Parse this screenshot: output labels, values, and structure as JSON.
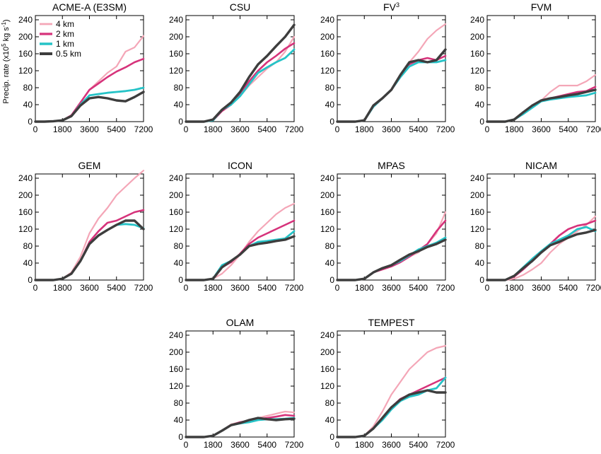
{
  "chart_data": {
    "type": "line",
    "ylabel": "Precip. rate",
    "ylabel_unit": "(x10",
    "ylabel_exp": "5",
    "ylabel_unit2": " kg s",
    "ylabel_exp2": "-1",
    "ylabel_close": ")",
    "ylim": [
      0,
      250
    ],
    "xlim": [
      0,
      7200
    ],
    "x_ticks": [
      0,
      1800,
      3600,
      5400,
      7200
    ],
    "y_ticks": [
      0,
      40,
      80,
      120,
      160,
      200,
      240
    ],
    "x": [
      0,
      600,
      1200,
      1800,
      2400,
      3000,
      3600,
      4200,
      4800,
      5400,
      6000,
      6600,
      7200
    ],
    "legend_position": "top-left",
    "series_styles": [
      {
        "name": "4 km",
        "color": "#f4a6b7",
        "width": 2.2
      },
      {
        "name": "2 km",
        "color": "#d6337b",
        "width": 2.6
      },
      {
        "name": "1 km",
        "color": "#26c3c7",
        "width": 2.8
      },
      {
        "name": "0.5 km",
        "color": "#3d3d3d",
        "width": 3.4
      }
    ],
    "panels": [
      {
        "title": "ACME-A (E3SM)",
        "title_sup": "",
        "show_legend": true,
        "show_ylabel": true,
        "series": [
          {
            "name": "4 km",
            "values": [
              0,
              0,
              1,
              3,
              15,
              45,
              75,
              95,
              115,
              130,
              165,
              175,
              202
            ]
          },
          {
            "name": "2 km",
            "values": [
              0,
              0,
              1,
              3,
              15,
              45,
              75,
              90,
              105,
              118,
              128,
              140,
              148
            ]
          },
          {
            "name": "1 km",
            "values": [
              0,
              0,
              1,
              3,
              13,
              40,
              62,
              65,
              68,
              70,
              72,
              75,
              80
            ]
          },
          {
            "name": "0.5 km",
            "values": [
              0,
              0,
              1,
              3,
              13,
              38,
              55,
              58,
              55,
              50,
              48,
              58,
              70
            ]
          }
        ]
      },
      {
        "title": "CSU",
        "title_sup": "",
        "show_legend": false,
        "show_ylabel": false,
        "series": [
          {
            "name": "4 km",
            "values": [
              0,
              0,
              0,
              3,
              25,
              40,
              60,
              85,
              105,
              125,
              140,
              165,
              200
            ]
          },
          {
            "name": "2 km",
            "values": [
              0,
              0,
              0,
              3,
              25,
              40,
              65,
              95,
              120,
              140,
              155,
              172,
              185
            ]
          },
          {
            "name": "1 km",
            "values": [
              0,
              0,
              0,
              3,
              28,
              40,
              60,
              88,
              115,
              128,
              140,
              150,
              170
            ]
          },
          {
            "name": "0.5 km",
            "values": [
              0,
              0,
              0,
              5,
              28,
              45,
              70,
              105,
              135,
              155,
              178,
              200,
              228
            ]
          }
        ]
      },
      {
        "title": "FV",
        "title_sup": "3",
        "show_legend": false,
        "show_ylabel": false,
        "series": [
          {
            "name": "4 km",
            "values": [
              0,
              0,
              0,
              3,
              35,
              55,
              75,
              105,
              140,
              165,
              195,
              215,
              230
            ]
          },
          {
            "name": "2 km",
            "values": [
              0,
              0,
              0,
              3,
              35,
              55,
              75,
              105,
              135,
              145,
              150,
              145,
              155
            ]
          },
          {
            "name": "1 km",
            "values": [
              0,
              0,
              0,
              3,
              35,
              55,
              75,
              105,
              130,
              140,
              140,
              140,
              145
            ]
          },
          {
            "name": "0.5 km",
            "values": [
              0,
              0,
              0,
              3,
              38,
              55,
              75,
              110,
              140,
              145,
              140,
              145,
              170
            ]
          }
        ]
      },
      {
        "title": "FVM",
        "title_sup": "",
        "show_legend": false,
        "show_ylabel": false,
        "series": [
          {
            "name": "4 km",
            "values": [
              0,
              0,
              0,
              5,
              18,
              35,
              50,
              70,
              85,
              85,
              85,
              95,
              110
            ]
          },
          {
            "name": "2 km",
            "values": [
              0,
              0,
              0,
              5,
              18,
              35,
              50,
              55,
              60,
              65,
              70,
              72,
              82
            ]
          },
          {
            "name": "1 km",
            "values": [
              0,
              0,
              0,
              5,
              18,
              33,
              48,
              52,
              55,
              58,
              60,
              62,
              68
            ]
          },
          {
            "name": "0.5 km",
            "values": [
              0,
              0,
              0,
              5,
              22,
              38,
              50,
              55,
              58,
              62,
              65,
              70,
              75
            ]
          }
        ]
      },
      {
        "title": "GEM",
        "title_sup": "",
        "show_legend": false,
        "show_ylabel": false,
        "series": [
          {
            "name": "4 km",
            "values": [
              0,
              0,
              0,
              3,
              18,
              55,
              110,
              145,
              170,
              200,
              220,
              240,
              258
            ]
          },
          {
            "name": "2 km",
            "values": [
              0,
              0,
              0,
              3,
              15,
              45,
              90,
              115,
              135,
              140,
              150,
              160,
              165
            ]
          },
          {
            "name": "1 km",
            "values": [
              0,
              0,
              0,
              3,
              15,
              45,
              85,
              105,
              118,
              130,
              132,
              130,
              122
            ]
          },
          {
            "name": "0.5 km",
            "values": [
              0,
              0,
              0,
              3,
              15,
              45,
              85,
              105,
              118,
              130,
              140,
              140,
              120
            ]
          }
        ]
      },
      {
        "title": "ICON",
        "title_sup": "",
        "show_legend": false,
        "show_ylabel": false,
        "series": [
          {
            "name": "4 km",
            "values": [
              0,
              0,
              0,
              3,
              15,
              35,
              60,
              90,
              115,
              135,
              155,
              170,
              180
            ]
          },
          {
            "name": "2 km",
            "values": [
              0,
              0,
              0,
              3,
              30,
              42,
              62,
              85,
              100,
              110,
              120,
              130,
              140
            ]
          },
          {
            "name": "1 km",
            "values": [
              0,
              0,
              0,
              3,
              35,
              45,
              60,
              80,
              90,
              92,
              95,
              98,
              115
            ]
          },
          {
            "name": "0.5 km",
            "values": [
              0,
              0,
              0,
              3,
              30,
              45,
              60,
              80,
              85,
              88,
              92,
              95,
              103
            ]
          }
        ]
      },
      {
        "title": "MPAS",
        "title_sup": "",
        "show_legend": false,
        "show_ylabel": false,
        "series": [
          {
            "name": "4 km",
            "values": [
              0,
              0,
              0,
              3,
              18,
              25,
              32,
              42,
              55,
              65,
              85,
              110,
              160
            ]
          },
          {
            "name": "2 km",
            "values": [
              0,
              0,
              0,
              3,
              18,
              25,
              32,
              42,
              55,
              70,
              85,
              115,
              140
            ]
          },
          {
            "name": "1 km",
            "values": [
              0,
              0,
              0,
              3,
              18,
              28,
              35,
              45,
              58,
              72,
              80,
              88,
              100
            ]
          },
          {
            "name": "0.5 km",
            "values": [
              0,
              0,
              0,
              3,
              18,
              28,
              35,
              48,
              60,
              68,
              78,
              85,
              95
            ]
          }
        ]
      },
      {
        "title": "NICAM",
        "title_sup": "",
        "show_legend": false,
        "show_ylabel": false,
        "series": [
          {
            "name": "4 km",
            "values": [
              0,
              0,
              0,
              3,
              12,
              25,
              40,
              65,
              85,
              100,
              115,
              130,
              150
            ]
          },
          {
            "name": "2 km",
            "values": [
              0,
              0,
              0,
              8,
              25,
              45,
              65,
              85,
              105,
              120,
              128,
              132,
              140
            ]
          },
          {
            "name": "1 km",
            "values": [
              0,
              0,
              0,
              10,
              30,
              50,
              68,
              85,
              95,
              105,
              120,
              125,
              115
            ]
          },
          {
            "name": "0.5 km",
            "values": [
              0,
              0,
              0,
              10,
              28,
              45,
              65,
              82,
              90,
              100,
              108,
              112,
              118
            ]
          }
        ]
      },
      {
        "title": "OLAM",
        "title_sup": "",
        "show_legend": false,
        "show_ylabel": false,
        "series": [
          {
            "name": "4 km",
            "values": [
              0,
              0,
              0,
              3,
              15,
              30,
              35,
              40,
              45,
              50,
              55,
              60,
              58
            ]
          },
          {
            "name": "2 km",
            "values": [
              0,
              0,
              0,
              3,
              15,
              28,
              35,
              38,
              42,
              45,
              48,
              52,
              50
            ]
          },
          {
            "name": "1 km",
            "values": [
              0,
              0,
              0,
              3,
              15,
              28,
              32,
              35,
              40,
              42,
              42,
              43,
              45
            ]
          },
          {
            "name": "0.5 km",
            "values": [
              0,
              0,
              0,
              3,
              15,
              28,
              33,
              40,
              45,
              42,
              40,
              42,
              43
            ]
          }
        ]
      },
      {
        "title": "TEMPEST",
        "title_sup": "",
        "show_legend": false,
        "show_ylabel": false,
        "series": [
          {
            "name": "4 km",
            "values": [
              0,
              0,
              0,
              3,
              25,
              60,
              100,
              130,
              160,
              180,
              200,
              210,
              215
            ]
          },
          {
            "name": "2 km",
            "values": [
              0,
              0,
              0,
              3,
              20,
              45,
              70,
              90,
              100,
              110,
              120,
              130,
              140
            ]
          },
          {
            "name": "1 km",
            "values": [
              0,
              0,
              0,
              3,
              20,
              40,
              65,
              85,
              95,
              100,
              110,
              115,
              140
            ]
          },
          {
            "name": "0.5 km",
            "values": [
              0,
              0,
              0,
              3,
              20,
              45,
              70,
              88,
              100,
              105,
              110,
              105,
              105
            ]
          }
        ]
      }
    ]
  }
}
